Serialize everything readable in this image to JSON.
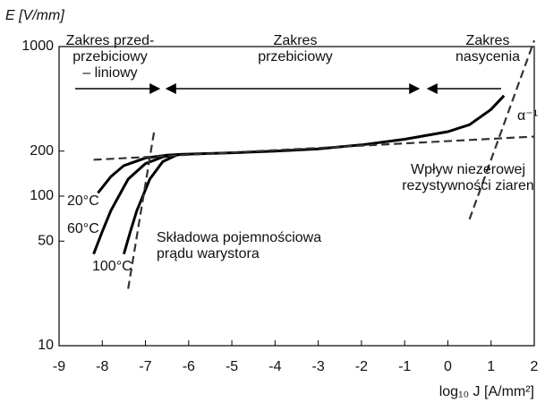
{
  "chart_data": {
    "type": "line",
    "y_axis_label": "E [V/mm]",
    "x_axis_label": "log₁₀ J [A/mm²]",
    "xlim": [
      -9,
      2
    ],
    "xticks": [
      -9,
      -8,
      -7,
      -6,
      -5,
      -4,
      -3,
      -2,
      -1,
      0,
      1,
      2
    ],
    "ylim": [
      10,
      1000
    ],
    "yticks": [
      10,
      50,
      100,
      200,
      1000
    ],
    "log_y": true,
    "series": [
      {
        "x": [
          -6.2,
          -5,
          -4,
          -3,
          -2,
          -1,
          0,
          0.5,
          1,
          1.3
        ],
        "values": [
          190,
          195,
          200,
          207,
          220,
          240,
          270,
          300,
          380,
          470
        ],
        "color": "#000000",
        "dash": false
      },
      {
        "name": "20°C",
        "x": [
          -8.1,
          -7.8,
          -7.5,
          -7,
          -6.5,
          -6.2
        ],
        "values": [
          105,
          135,
          160,
          180,
          188,
          190
        ],
        "color": "#000000",
        "dash": false
      },
      {
        "name": "60°C",
        "x": [
          -8.2,
          -8,
          -7.8,
          -7.4,
          -7,
          -6.6,
          -6.2
        ],
        "values": [
          41,
          58,
          80,
          130,
          165,
          183,
          190
        ],
        "color": "#000000",
        "dash": false
      },
      {
        "name": "100°C",
        "x": [
          -7.5,
          -7.35,
          -7.2,
          -6.9,
          -6.6,
          -6.3,
          -6.2
        ],
        "values": [
          41,
          58,
          80,
          130,
          170,
          187,
          190
        ],
        "color": "#000000",
        "dash": false
      },
      {
        "x": [
          -8.2,
          2
        ],
        "values": [
          175,
          250
        ],
        "color": "#333333",
        "dash": true
      },
      {
        "x": [
          -7.4,
          -6.8
        ],
        "values": [
          24,
          270
        ],
        "color": "#333333",
        "dash": true
      },
      {
        "x": [
          0.5,
          2
        ],
        "values": [
          70,
          1100
        ],
        "color": "#333333",
        "dash": true
      }
    ],
    "annotations": [
      [
        "Zakres przed-",
        "przebiciowy",
        "– liniowy"
      ],
      [
        "Zakres",
        "przebiciowy"
      ],
      [
        "Zakres",
        "nasycenia"
      ],
      [
        "α⁻¹"
      ],
      [
        "Wpływ niezerowej",
        "rezystywności ziaren"
      ],
      [
        "Składowa pojemnościowa",
        "prądu warystora"
      ]
    ]
  }
}
